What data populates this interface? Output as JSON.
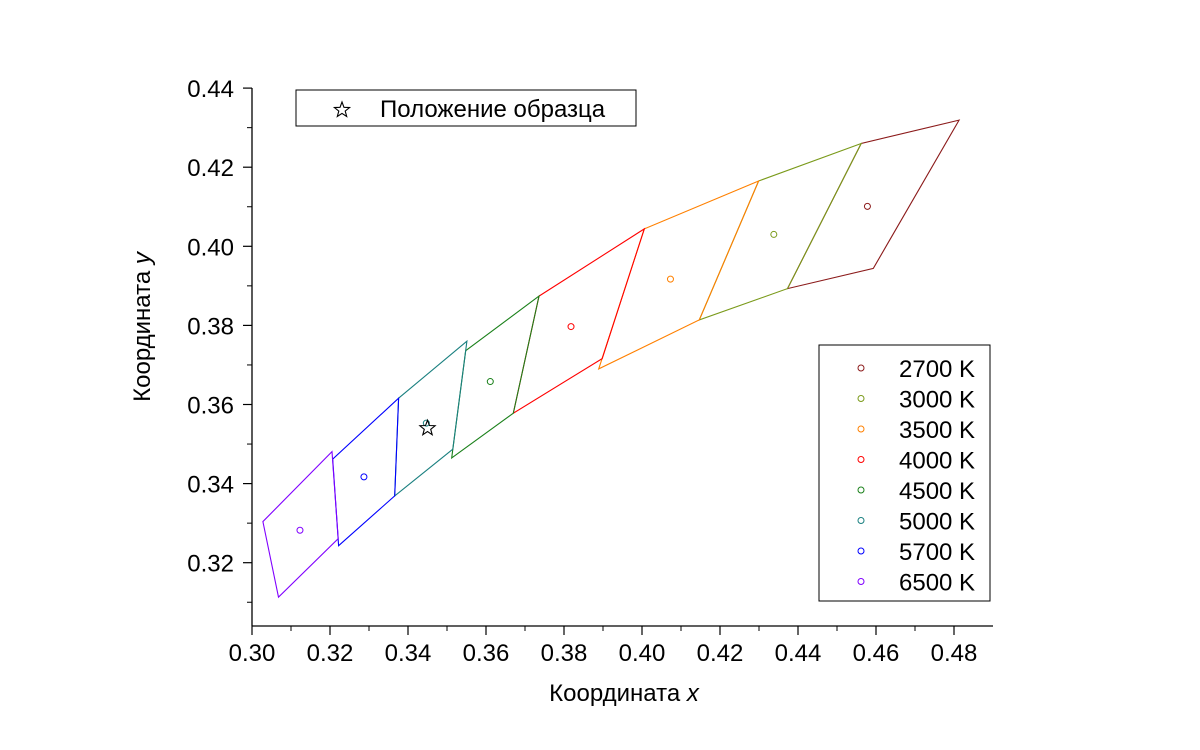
{
  "chart_data": {
    "type": "scatter",
    "xlabel": "Координата",
    "xlabel_var": "x",
    "ylabel": "Координата",
    "ylabel_var": "y",
    "xlim": [
      0.3,
      0.49
    ],
    "ylim": [
      0.305,
      0.44
    ],
    "xticks": [
      "0.30",
      "0.32",
      "0.34",
      "0.36",
      "0.38",
      "0.40",
      "0.42",
      "0.44",
      "0.46",
      "0.48"
    ],
    "yticks": [
      "0.32",
      "0.34",
      "0.36",
      "0.38",
      "0.40",
      "0.42",
      "0.44"
    ],
    "grid": false,
    "legend_top": {
      "position": "top-left",
      "label": "Положение образца"
    },
    "legend_bottom": {
      "position": "bottom-right"
    },
    "sample": {
      "x": 0.345,
      "y": 0.354
    },
    "series": [
      {
        "name": "2700 K",
        "color": "#8B1A1A",
        "center": [
          0.4578,
          0.4101
        ],
        "quad": [
          [
            0.4813,
            0.4319
          ],
          [
            0.4562,
            0.426
          ],
          [
            0.4373,
            0.3893
          ],
          [
            0.4593,
            0.3944
          ]
        ]
      },
      {
        "name": "3000 K",
        "color": "#7A9A1A",
        "center": [
          0.4338,
          0.403
        ],
        "quad": [
          [
            0.4562,
            0.426
          ],
          [
            0.4299,
            0.4165
          ],
          [
            0.4147,
            0.3814
          ],
          [
            0.4373,
            0.3893
          ]
        ]
      },
      {
        "name": "3500 K",
        "color": "#FF8000",
        "center": [
          0.4073,
          0.3917
        ],
        "quad": [
          [
            0.4299,
            0.4165
          ],
          [
            0.4006,
            0.4044
          ],
          [
            0.3889,
            0.369
          ],
          [
            0.4147,
            0.3814
          ]
        ]
      },
      {
        "name": "4000 K",
        "color": "#FF0000",
        "center": [
          0.3818,
          0.3797
        ],
        "quad": [
          [
            0.4006,
            0.4044
          ],
          [
            0.3736,
            0.3874
          ],
          [
            0.367,
            0.3578
          ],
          [
            0.3898,
            0.3716
          ]
        ]
      },
      {
        "name": "4500 K",
        "color": "#1A801A",
        "center": [
          0.3611,
          0.3658
        ],
        "quad": [
          [
            0.3736,
            0.3874
          ],
          [
            0.3548,
            0.3736
          ],
          [
            0.3512,
            0.3465
          ],
          [
            0.367,
            0.3578
          ]
        ]
      },
      {
        "name": "5000 K",
        "color": "#1A8080",
        "center": [
          0.3447,
          0.3553
        ],
        "quad": [
          [
            0.3551,
            0.376
          ],
          [
            0.3376,
            0.3616
          ],
          [
            0.3366,
            0.3369
          ],
          [
            0.3515,
            0.3487
          ]
        ]
      },
      {
        "name": "5700 K",
        "color": "#0000FF",
        "center": [
          0.3287,
          0.3417
        ],
        "quad": [
          [
            0.3376,
            0.3616
          ],
          [
            0.3207,
            0.3462
          ],
          [
            0.3222,
            0.3243
          ],
          [
            0.3366,
            0.3369
          ]
        ]
      },
      {
        "name": "6500 K",
        "color": "#8000FF",
        "center": [
          0.3123,
          0.3282
        ],
        "quad": [
          [
            0.3205,
            0.3481
          ],
          [
            0.3028,
            0.3304
          ],
          [
            0.3068,
            0.3113
          ],
          [
            0.3221,
            0.3261
          ]
        ]
      }
    ]
  }
}
